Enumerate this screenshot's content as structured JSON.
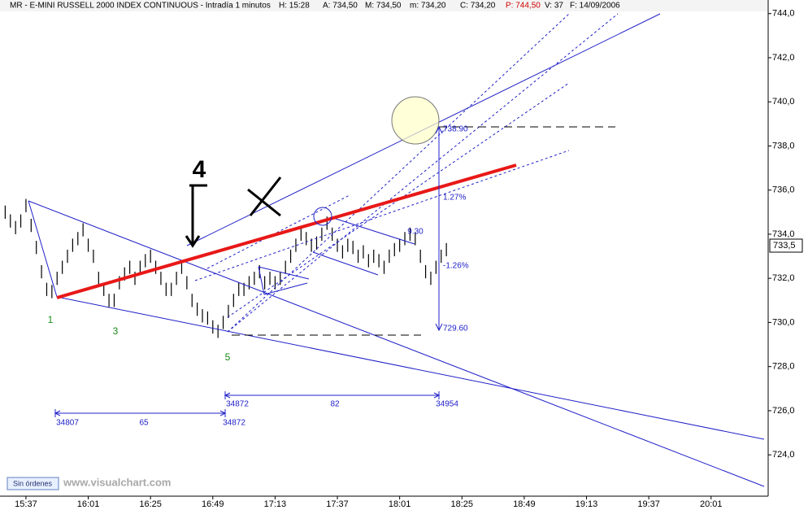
{
  "chart_data": {
    "type": "hilo",
    "header": {
      "name": "MR - E-MINI RUSSELL 2000 INDEX CONTINUOUS - Intradía 1 minutos",
      "h": "H: 15:28",
      "a": "A: 734,50",
      "m_high": "M: 734,50",
      "m_low": "m: 734,20",
      "c": "C: 734,20",
      "p": "P: 744,50",
      "v": "V: 37",
      "f": "F: 14/09/2006"
    },
    "color": "#000000",
    "x": [
      "15:29",
      "15:31",
      "15:33",
      "15:35",
      "15:37",
      "15:39",
      "15:41",
      "15:43",
      "15:45",
      "15:47",
      "15:49",
      "15:51",
      "15:53",
      "15:55",
      "15:57",
      "15:59",
      "16:01",
      "16:03",
      "16:05",
      "16:07",
      "16:09",
      "16:11",
      "16:13",
      "16:15",
      "16:17",
      "16:19",
      "16:21",
      "16:23",
      "16:25",
      "16:27",
      "16:29",
      "16:31",
      "16:33",
      "16:35",
      "16:37",
      "16:39",
      "16:41",
      "16:43",
      "16:45",
      "16:47",
      "16:49",
      "16:51",
      "16:53",
      "16:55",
      "16:57",
      "16:59",
      "17:01",
      "17:03",
      "17:05",
      "17:07",
      "17:09",
      "17:11",
      "17:13",
      "17:15",
      "17:17",
      "17:19",
      "17:21",
      "17:23",
      "17:25",
      "17:27",
      "17:29",
      "17:31",
      "17:33",
      "17:35",
      "17:37",
      "17:39",
      "17:41",
      "17:43",
      "17:45",
      "17:47",
      "17:49",
      "17:51",
      "17:53",
      "17:55",
      "17:57",
      "17:59",
      "18:01",
      "18:03",
      "18:05",
      "18:07",
      "18:09",
      "18:11",
      "18:13",
      "18:15",
      "18:17",
      "18:19"
    ],
    "high": [
      735.3,
      734.9,
      734.6,
      734.9,
      735.6,
      734.7,
      733.7,
      732.6,
      731.8,
      731.7,
      732.3,
      732.8,
      733.3,
      733.8,
      734.1,
      734.5,
      733.8,
      733.3,
      732.3,
      731.8,
      731.3,
      731.3,
      732.1,
      732.5,
      732.8,
      732.3,
      732.8,
      733.1,
      733.3,
      732.8,
      732.3,
      731.8,
      731.8,
      732.3,
      732.8,
      732.1,
      731.3,
      730.9,
      730.6,
      730.5,
      730.1,
      729.9,
      730.3,
      730.8,
      731.3,
      731.8,
      731.8,
      732.1,
      732.3,
      732.6,
      732.1,
      732.3,
      732.1,
      732.3,
      732.8,
      733.3,
      733.8,
      734.3,
      734.1,
      733.8,
      733.9,
      734.3,
      734.8,
      734.3,
      733.8,
      733.5,
      733.8,
      733.7,
      733.3,
      733.5,
      733.1,
      733.3,
      733.1,
      732.8,
      733.3,
      733.6,
      733.8,
      734.1,
      734.3,
      734.1,
      733.3,
      732.6,
      732.3,
      732.8,
      733.3,
      733.6
    ],
    "low": [
      734.7,
      734.3,
      734.0,
      734.3,
      735.0,
      734.1,
      733.1,
      732.0,
      731.2,
      731.1,
      731.7,
      732.2,
      732.7,
      733.2,
      733.5,
      733.9,
      733.2,
      732.7,
      731.7,
      731.2,
      730.7,
      730.7,
      731.5,
      731.9,
      732.2,
      731.7,
      732.2,
      732.5,
      732.7,
      732.2,
      731.7,
      731.2,
      731.2,
      731.7,
      732.2,
      731.5,
      730.7,
      730.3,
      730.0,
      729.9,
      729.5,
      729.3,
      729.7,
      730.2,
      730.7,
      731.2,
      731.2,
      731.5,
      731.7,
      732.0,
      731.5,
      731.7,
      731.5,
      731.7,
      732.2,
      732.7,
      733.2,
      733.7,
      733.5,
      733.2,
      733.3,
      733.7,
      734.2,
      733.7,
      733.2,
      732.9,
      733.2,
      733.1,
      732.7,
      732.9,
      732.5,
      732.7,
      732.5,
      732.2,
      732.7,
      733.0,
      733.2,
      733.5,
      733.7,
      733.5,
      732.7,
      732.0,
      731.7,
      732.2,
      732.7,
      733.0
    ],
    "xlim": [
      "15:27",
      "20:23"
    ],
    "xticks": [
      "15:37",
      "16:01",
      "16:25",
      "16:49",
      "17:13",
      "17:37",
      "18:01",
      "18:25",
      "18:49",
      "19:13",
      "19:37",
      "20:01"
    ],
    "ylim": [
      722.2,
      744.1
    ],
    "yticks": [
      {
        "value": 724,
        "label": "724,0"
      },
      {
        "value": 726,
        "label": "726,0"
      },
      {
        "value": 728,
        "label": "728,0"
      },
      {
        "value": 730,
        "label": "730,0"
      },
      {
        "value": 732,
        "label": "732,0"
      },
      {
        "value": 734,
        "label": "734,0"
      },
      {
        "value": 736,
        "label": "736,0"
      },
      {
        "value": 738,
        "label": "738,0"
      },
      {
        "value": 740,
        "label": "740,0"
      },
      {
        "value": 742,
        "label": "742,0"
      },
      {
        "value": 744,
        "label": "744,0"
      }
    ],
    "last_price": "733,5",
    "annotations": {
      "wave_1": "1",
      "wave_3": "3",
      "wave_5": "5",
      "wave_4": "4",
      "bar_a": "34807",
      "span_a": "65",
      "bar_b": "34872",
      "bar_c": "34872",
      "span_b": "82",
      "bar_d": "34954",
      "target": "738.90",
      "pct_up": "1.27%",
      "pct_down": "-1.26%",
      "base": "729.60",
      "time_note": "9.30"
    },
    "footer": {
      "orders": "Sin órdenes",
      "site": "www.visualchart.com"
    }
  }
}
